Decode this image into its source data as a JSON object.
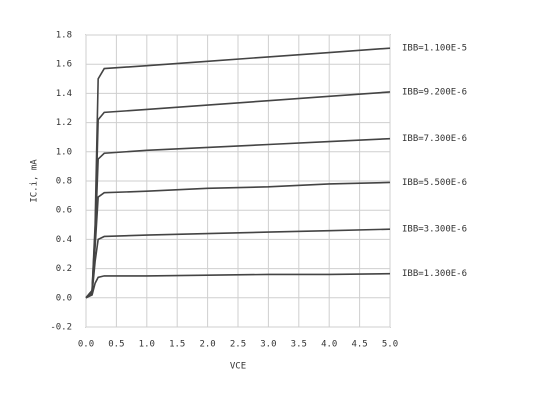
{
  "chart_data": {
    "type": "line",
    "x_label": "VCE",
    "y_label": "IC.i, mA",
    "x": [
      0,
      0.1,
      0.15,
      0.2,
      0.3,
      1,
      2,
      3,
      4,
      5
    ],
    "series": [
      {
        "name": "IBB=1.100E-5",
        "color": "#444444",
        "values": [
          0,
          0.05,
          0.5,
          1.5,
          1.57,
          1.59,
          1.62,
          1.65,
          1.68,
          1.71
        ]
      },
      {
        "name": "IBB=9.200E-6",
        "color": "#444444",
        "values": [
          0,
          0.05,
          0.45,
          1.22,
          1.27,
          1.29,
          1.32,
          1.35,
          1.38,
          1.41
        ]
      },
      {
        "name": "IBB=7.300E-6",
        "color": "#444444",
        "values": [
          0,
          0.04,
          0.4,
          0.95,
          0.99,
          1.01,
          1.03,
          1.05,
          1.07,
          1.09
        ]
      },
      {
        "name": "IBB=5.500E-6",
        "color": "#444444",
        "values": [
          0,
          0.04,
          0.35,
          0.69,
          0.72,
          0.73,
          0.75,
          0.76,
          0.78,
          0.79
        ]
      },
      {
        "name": "IBB=3.300E-6",
        "color": "#444444",
        "values": [
          0,
          0.03,
          0.25,
          0.4,
          0.42,
          0.43,
          0.44,
          0.45,
          0.46,
          0.47
        ]
      },
      {
        "name": "IBB=1.300E-6",
        "color": "#444444",
        "values": [
          0,
          0.02,
          0.1,
          0.14,
          0.15,
          0.15,
          0.155,
          0.16,
          0.16,
          0.165
        ]
      }
    ],
    "xlim": [
      0,
      5
    ],
    "ylim": [
      -0.2,
      1.8
    ],
    "xticks": [
      {
        "value": 0,
        "label": "0.0"
      },
      0.5,
      {
        "value": 1,
        "label": "1.0"
      },
      1.5,
      {
        "value": 2,
        "label": "2.0"
      },
      2.5,
      {
        "value": 3,
        "label": "3.0"
      },
      3.5,
      {
        "value": 4,
        "label": "4.0"
      },
      4.5,
      {
        "value": 5,
        "label": "5.0"
      }
    ],
    "yticks": [
      -0.2,
      {
        "value": 0,
        "label": "0.0"
      },
      0.2,
      0.4,
      0.6,
      0.8,
      {
        "value": 1,
        "label": "1.0"
      },
      1.2,
      1.4,
      1.6,
      1.8
    ],
    "grid": true
  }
}
